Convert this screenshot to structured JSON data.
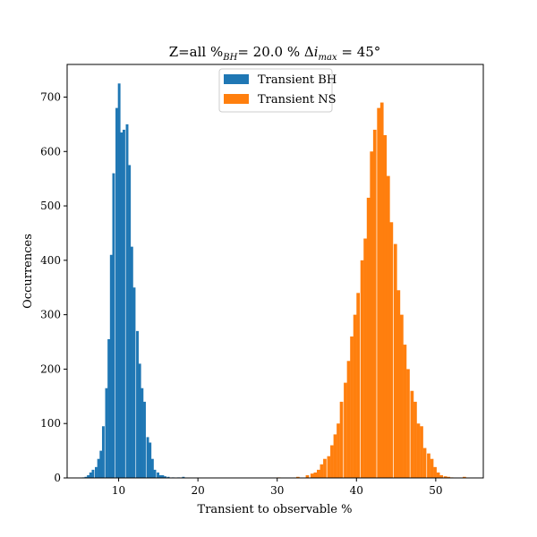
{
  "chart_data": {
    "type": "bar",
    "title_parts": {
      "lead": "Z=all %",
      "bh_sub": "BH",
      "mid": "= 20.0 % Δ",
      "i": "i",
      "max_sub": "max",
      "tail": " = 45°"
    },
    "xlabel": "Transient to observable %",
    "ylabel": "Occurrences",
    "xlim": [
      3.5,
      56.0
    ],
    "ylim": [
      0,
      760
    ],
    "xticks": [
      10,
      20,
      30,
      40,
      50
    ],
    "yticks": [
      0,
      100,
      200,
      300,
      400,
      500,
      600,
      700
    ],
    "grid": false,
    "legend_position": "top-center",
    "series": [
      {
        "name": "Transient BH",
        "color": "#1f77b4",
        "bin_width": 0.33,
        "x": [
          5.4,
          5.7,
          6.0,
          6.3,
          6.6,
          7.0,
          7.3,
          7.6,
          7.9,
          8.3,
          8.6,
          8.9,
          9.2,
          9.6,
          9.9,
          10.2,
          10.5,
          10.9,
          11.2,
          11.5,
          11.8,
          12.2,
          12.5,
          12.8,
          13.1,
          13.5,
          13.8,
          14.1,
          14.4,
          14.8,
          15.1,
          15.4,
          15.7,
          16.1,
          16.7,
          17.4,
          18.0
        ],
        "values": [
          1,
          2,
          5,
          10,
          15,
          20,
          35,
          50,
          95,
          165,
          255,
          410,
          560,
          680,
          725,
          635,
          640,
          650,
          575,
          425,
          350,
          270,
          210,
          165,
          140,
          75,
          65,
          35,
          15,
          10,
          5,
          5,
          3,
          2,
          1,
          1,
          2
        ]
      },
      {
        "name": "Transient NS",
        "color": "#ff7f0e",
        "bin_width": 0.42,
        "x": [
          30.0,
          32.4,
          33.6,
          34.2,
          34.6,
          35.0,
          35.4,
          35.8,
          36.3,
          36.7,
          37.1,
          37.5,
          37.9,
          38.4,
          38.8,
          39.2,
          39.6,
          40.0,
          40.5,
          40.9,
          41.3,
          41.7,
          42.1,
          42.6,
          43.0,
          43.4,
          43.8,
          44.2,
          44.7,
          45.1,
          45.5,
          45.9,
          46.3,
          46.8,
          47.2,
          47.6,
          48.0,
          48.4,
          48.9,
          49.3,
          49.7,
          50.1,
          50.5,
          51.0,
          51.4,
          51.8,
          53.4
        ],
        "values": [
          1,
          2,
          5,
          8,
          10,
          15,
          25,
          35,
          40,
          60,
          80,
          100,
          140,
          175,
          215,
          260,
          300,
          340,
          400,
          440,
          515,
          600,
          640,
          680,
          690,
          630,
          555,
          470,
          430,
          345,
          300,
          245,
          200,
          160,
          140,
          100,
          95,
          55,
          45,
          35,
          20,
          10,
          5,
          3,
          2,
          1,
          2
        ]
      }
    ]
  }
}
